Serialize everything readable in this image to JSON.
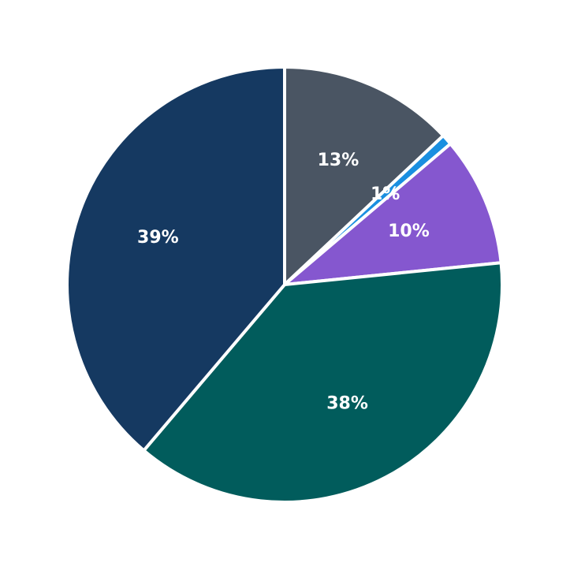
{
  "chart_data": {
    "type": "pie",
    "slices": [
      {
        "value": 13,
        "label": "13%",
        "color": "#4a5563"
      },
      {
        "value": 0.8,
        "label": "1%",
        "color": "#1a8fe0"
      },
      {
        "value": 9.6,
        "label": "10%",
        "color": "#8557cf"
      },
      {
        "value": 37.8,
        "label": "38%",
        "color": "#015c5c"
      },
      {
        "value": 38.8,
        "label": "39%",
        "color": "#153961"
      }
    ],
    "start_angle": "12 o'clock",
    "direction": "clockwise",
    "legend": "none"
  }
}
